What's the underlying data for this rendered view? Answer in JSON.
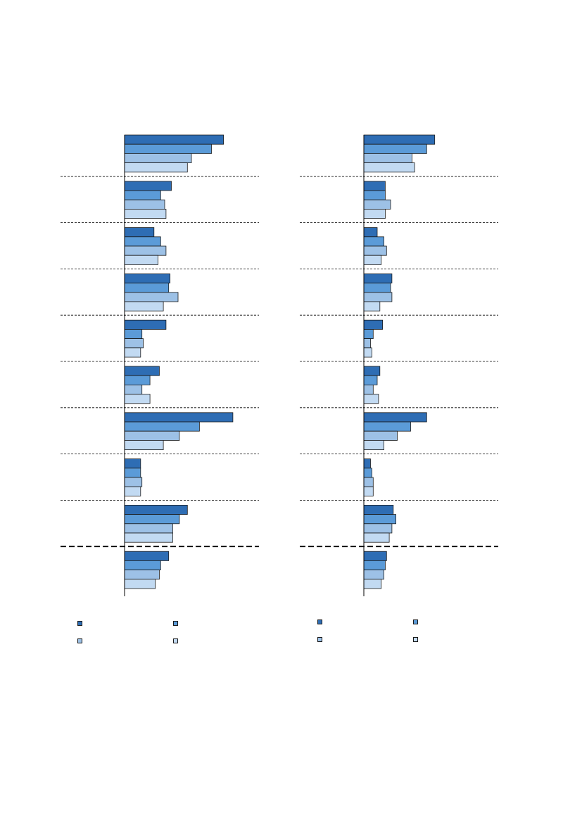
{
  "chart_data": [
    {
      "type": "bar",
      "orientation": "horizontal",
      "title": "",
      "xlabel": "",
      "ylabel": "",
      "xlim": [
        0,
        100
      ],
      "grid": false,
      "legend_position": "bottom",
      "categories": [
        "",
        "",
        "",
        "",
        "",
        "",
        "",
        "",
        "",
        ""
      ],
      "series": [
        {
          "name": "",
          "color": "#2e6db4",
          "values": [
            74,
            35,
            22,
            34,
            31,
            26,
            81,
            12,
            47,
            33
          ]
        },
        {
          "name": "",
          "color": "#5b9bd8",
          "values": [
            65,
            27,
            27,
            33,
            13,
            19,
            56,
            12,
            41,
            27
          ]
        },
        {
          "name": "",
          "color": "#9dc1e6",
          "values": [
            50,
            30,
            31,
            40,
            14,
            13,
            41,
            13,
            36,
            26
          ]
        },
        {
          "name": "",
          "color": "#c2daf2",
          "values": [
            47,
            31,
            25,
            29,
            12,
            19,
            29,
            12,
            36,
            23
          ]
        }
      ]
    },
    {
      "type": "bar",
      "orientation": "horizontal",
      "title": "",
      "xlabel": "",
      "ylabel": "",
      "xlim": [
        0,
        100
      ],
      "grid": false,
      "legend_position": "bottom",
      "categories": [
        "",
        "",
        "",
        "",
        "",
        "",
        "",
        "",
        "",
        ""
      ],
      "series": [
        {
          "name": "",
          "color": "#2e6db4",
          "values": [
            53,
            16,
            10,
            21,
            14,
            12,
            47,
            5,
            22,
            17
          ]
        },
        {
          "name": "",
          "color": "#5b9bd8",
          "values": [
            47,
            16,
            15,
            20,
            7,
            10,
            35,
            6,
            24,
            16
          ]
        },
        {
          "name": "",
          "color": "#9dc1e6",
          "values": [
            36,
            20,
            17,
            21,
            5,
            7,
            25,
            7,
            21,
            15
          ]
        },
        {
          "name": "",
          "color": "#c2daf2",
          "values": [
            38,
            16,
            13,
            12,
            6,
            11,
            15,
            7,
            19,
            13
          ]
        }
      ]
    }
  ]
}
